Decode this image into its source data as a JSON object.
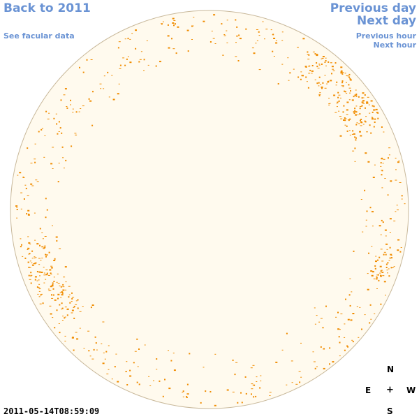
{
  "nav": {
    "back": "Back to 2011",
    "facular": "See facular data",
    "previous_day": "Previous day",
    "next_day": "Next day",
    "previous_hour": "Previous hour",
    "next_hour": "Next hour"
  },
  "compass": {
    "north": "N",
    "east": "E",
    "center": "+",
    "west": "W",
    "south": "S"
  },
  "timestamp": "2011-05-14T08:59:09",
  "colors": {
    "link": "#6a93d4",
    "disk_fill": "#fffaee",
    "disk_border": "#c8b89a",
    "spot": "#f08c00"
  }
}
